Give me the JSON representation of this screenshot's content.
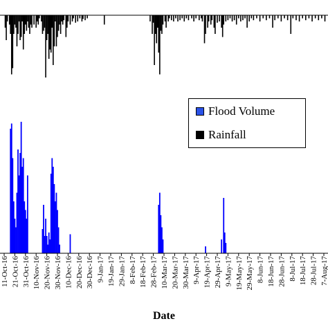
{
  "chart_data": {
    "type": "bar",
    "xlabel": "Date",
    "ylabel": "",
    "legend": {
      "placement": "top-right",
      "entries": [
        {
          "name": "Flood Volume",
          "color": "#0000ff"
        },
        {
          "name": "Rainfall",
          "color": "#000000"
        }
      ]
    },
    "x_tick_labels": [
      "11-Oct-16",
      "21-Oct-16",
      "31-Oct-16",
      "10-Nov-16",
      "20-Nov-16",
      "30-Nov-16",
      "10-Dec-16",
      "20-Dec-16",
      "30-Dec-16",
      "9-Jan-17",
      "19-Jan-17",
      "29-Jan-17",
      "8-Feb-17",
      "18-Feb-17",
      "28-Feb-17",
      "10-Mar-17",
      "20-Mar-17",
      "30-Mar-17",
      "9-Apr-17",
      "19-Apr-17",
      "29-Apr-17",
      "9-May-17",
      "19-May-17",
      "29-May-17",
      "8-Jun-17",
      "18-Jun-17",
      "28-Jun-17",
      "8-Jul-17",
      "18-Jul-17",
      "28-Jul-17",
      "7-Aug-17"
    ],
    "x_start_date": "2016-10-11",
    "series": [
      {
        "name": "Flood Volume",
        "color": "#0000ff",
        "ylim": [
          0,
          1
        ],
        "points": [
          [
            "2016-10-17",
            0.72
          ],
          [
            "2016-10-18",
            0.75
          ],
          [
            "2016-10-19",
            0.55
          ],
          [
            "2016-10-20",
            0.3
          ],
          [
            "2016-10-21",
            0.2
          ],
          [
            "2016-10-22",
            0.15
          ],
          [
            "2016-10-23",
            0.35
          ],
          [
            "2016-10-24",
            0.6
          ],
          [
            "2016-10-25",
            0.45
          ],
          [
            "2016-10-26",
            0.58
          ],
          [
            "2016-10-27",
            0.76
          ],
          [
            "2016-10-28",
            0.5
          ],
          [
            "2016-10-29",
            0.55
          ],
          [
            "2016-10-30",
            0.3
          ],
          [
            "2016-10-31",
            0.25
          ],
          [
            "2016-11-01",
            0.2
          ],
          [
            "2016-11-02",
            0.45
          ],
          [
            "2016-11-16",
            0.14
          ],
          [
            "2016-11-17",
            0.28
          ],
          [
            "2016-11-18",
            0.1
          ],
          [
            "2016-11-19",
            0.2
          ],
          [
            "2016-11-20",
            0.1
          ],
          [
            "2016-11-21",
            0.05
          ],
          [
            "2016-11-22",
            0.12
          ],
          [
            "2016-11-23",
            0.08
          ],
          [
            "2016-11-24",
            0.46
          ],
          [
            "2016-11-25",
            0.55
          ],
          [
            "2016-11-26",
            0.5
          ],
          [
            "2016-11-27",
            0.4
          ],
          [
            "2016-11-28",
            0.3
          ],
          [
            "2016-11-29",
            0.35
          ],
          [
            "2016-11-30",
            0.25
          ],
          [
            "2016-12-01",
            0.15
          ],
          [
            "2016-12-02",
            0.05
          ],
          [
            "2016-12-12",
            0.11
          ],
          [
            "2017-03-05",
            0.28
          ],
          [
            "2017-03-06",
            0.35
          ],
          [
            "2017-03-07",
            0.22
          ],
          [
            "2017-03-08",
            0.15
          ],
          [
            "2017-03-09",
            0.08
          ],
          [
            "2017-04-18",
            0.04
          ],
          [
            "2017-05-03",
            0.08
          ],
          [
            "2017-05-05",
            0.32
          ],
          [
            "2017-05-06",
            0.12
          ],
          [
            "2017-05-07",
            0.06
          ]
        ]
      },
      {
        "name": "Rainfall",
        "color": "#000000",
        "ylim": [
          0,
          1
        ],
        "points": [
          [
            "2016-10-12",
            0.2
          ],
          [
            "2016-10-13",
            0.4
          ],
          [
            "2016-10-14",
            0.1
          ],
          [
            "2016-10-16",
            0.15
          ],
          [
            "2016-10-17",
            0.3
          ],
          [
            "2016-10-18",
            0.95
          ],
          [
            "2016-10-19",
            0.85
          ],
          [
            "2016-10-20",
            0.3
          ],
          [
            "2016-10-21",
            0.15
          ],
          [
            "2016-10-22",
            0.2
          ],
          [
            "2016-10-23",
            0.5
          ],
          [
            "2016-10-24",
            0.3
          ],
          [
            "2016-10-25",
            0.1
          ],
          [
            "2016-10-26",
            0.4
          ],
          [
            "2016-10-27",
            0.35
          ],
          [
            "2016-10-28",
            0.1
          ],
          [
            "2016-10-29",
            0.55
          ],
          [
            "2016-10-30",
            0.3
          ],
          [
            "2016-10-31",
            0.15
          ],
          [
            "2016-11-01",
            0.25
          ],
          [
            "2016-11-02",
            0.1
          ],
          [
            "2016-11-03",
            0.2
          ],
          [
            "2016-11-04",
            0.3
          ],
          [
            "2016-11-05",
            0.15
          ],
          [
            "2016-11-06",
            0.2
          ],
          [
            "2016-11-08",
            0.15
          ],
          [
            "2016-11-10",
            0.2
          ],
          [
            "2016-11-11",
            0.1
          ],
          [
            "2016-11-12",
            0.15
          ],
          [
            "2016-11-13",
            0.05
          ],
          [
            "2016-11-15",
            0.1
          ],
          [
            "2016-11-16",
            0.3
          ],
          [
            "2016-11-17",
            0.25
          ],
          [
            "2016-11-18",
            0.2
          ],
          [
            "2016-11-19",
            1.0
          ],
          [
            "2016-11-20",
            0.4
          ],
          [
            "2016-11-21",
            0.3
          ],
          [
            "2016-11-22",
            0.7
          ],
          [
            "2016-11-23",
            0.55
          ],
          [
            "2016-11-24",
            0.6
          ],
          [
            "2016-11-25",
            0.2
          ],
          [
            "2016-11-26",
            0.8
          ],
          [
            "2016-11-27",
            0.5
          ],
          [
            "2016-11-28",
            0.1
          ],
          [
            "2016-11-29",
            0.5
          ],
          [
            "2016-11-30",
            0.35
          ],
          [
            "2016-12-01",
            0.25
          ],
          [
            "2016-12-02",
            0.15
          ],
          [
            "2016-12-03",
            0.3
          ],
          [
            "2016-12-04",
            0.1
          ],
          [
            "2016-12-05",
            0.15
          ],
          [
            "2016-12-06",
            0.08
          ],
          [
            "2016-12-08",
            0.35
          ],
          [
            "2016-12-09",
            0.2
          ],
          [
            "2016-12-10",
            0.1
          ],
          [
            "2016-12-12",
            0.15
          ],
          [
            "2016-12-14",
            0.1
          ],
          [
            "2016-12-15",
            0.05
          ],
          [
            "2016-12-17",
            0.12
          ],
          [
            "2016-12-19",
            0.1
          ],
          [
            "2016-12-21",
            0.05
          ],
          [
            "2016-12-23",
            0.1
          ],
          [
            "2016-12-24",
            0.06
          ],
          [
            "2016-12-26",
            0.08
          ],
          [
            "2016-12-28",
            0.05
          ],
          [
            "2017-01-13",
            0.15
          ],
          [
            "2017-02-25",
            0.1
          ],
          [
            "2017-02-27",
            0.3
          ],
          [
            "2017-02-28",
            0.12
          ],
          [
            "2017-03-01",
            0.8
          ],
          [
            "2017-03-02",
            0.3
          ],
          [
            "2017-03-03",
            0.45
          ],
          [
            "2017-03-04",
            0.2
          ],
          [
            "2017-03-05",
            0.6
          ],
          [
            "2017-03-06",
            0.95
          ],
          [
            "2017-03-07",
            0.25
          ],
          [
            "2017-03-08",
            0.3
          ],
          [
            "2017-03-09",
            0.15
          ],
          [
            "2017-03-11",
            0.1
          ],
          [
            "2017-03-12",
            0.2
          ],
          [
            "2017-03-14",
            0.1
          ],
          [
            "2017-03-15",
            0.05
          ],
          [
            "2017-03-17",
            0.08
          ],
          [
            "2017-03-19",
            0.1
          ],
          [
            "2017-03-21",
            0.05
          ],
          [
            "2017-03-23",
            0.1
          ],
          [
            "2017-03-25",
            0.08
          ],
          [
            "2017-03-27",
            0.05
          ],
          [
            "2017-03-29",
            0.1
          ],
          [
            "2017-03-31",
            0.05
          ],
          [
            "2017-04-02",
            0.08
          ],
          [
            "2017-04-05",
            0.05
          ],
          [
            "2017-04-07",
            0.1
          ],
          [
            "2017-04-09",
            0.05
          ],
          [
            "2017-04-12",
            0.08
          ],
          [
            "2017-04-14",
            0.05
          ],
          [
            "2017-04-15",
            0.1
          ],
          [
            "2017-04-17",
            0.45
          ],
          [
            "2017-04-18",
            0.3
          ],
          [
            "2017-04-20",
            0.2
          ],
          [
            "2017-04-21",
            0.1
          ],
          [
            "2017-04-23",
            0.15
          ],
          [
            "2017-04-24",
            0.08
          ],
          [
            "2017-04-26",
            0.2
          ],
          [
            "2017-04-27",
            0.3
          ],
          [
            "2017-04-29",
            0.12
          ],
          [
            "2017-05-01",
            0.1
          ],
          [
            "2017-05-03",
            0.2
          ],
          [
            "2017-05-04",
            0.35
          ],
          [
            "2017-05-05",
            0.15
          ],
          [
            "2017-05-07",
            0.1
          ],
          [
            "2017-05-09",
            0.08
          ],
          [
            "2017-05-11",
            0.05
          ],
          [
            "2017-05-13",
            0.1
          ],
          [
            "2017-05-15",
            0.08
          ],
          [
            "2017-05-17",
            0.15
          ],
          [
            "2017-05-19",
            0.05
          ],
          [
            "2017-05-21",
            0.1
          ],
          [
            "2017-05-23",
            0.08
          ],
          [
            "2017-05-25",
            0.05
          ],
          [
            "2017-05-27",
            0.2
          ],
          [
            "2017-05-29",
            0.1
          ],
          [
            "2017-05-31",
            0.05
          ],
          [
            "2017-06-02",
            0.08
          ],
          [
            "2017-06-05",
            0.05
          ],
          [
            "2017-06-08",
            0.1
          ],
          [
            "2017-06-11",
            0.05
          ],
          [
            "2017-06-14",
            0.08
          ],
          [
            "2017-06-17",
            0.05
          ],
          [
            "2017-06-20",
            0.2
          ],
          [
            "2017-06-22",
            0.08
          ],
          [
            "2017-06-25",
            0.05
          ],
          [
            "2017-06-28",
            0.1
          ],
          [
            "2017-07-01",
            0.05
          ],
          [
            "2017-07-04",
            0.08
          ],
          [
            "2017-07-07",
            0.3
          ],
          [
            "2017-07-09",
            0.05
          ],
          [
            "2017-07-12",
            0.08
          ],
          [
            "2017-07-15",
            0.1
          ],
          [
            "2017-07-18",
            0.05
          ],
          [
            "2017-07-21",
            0.08
          ],
          [
            "2017-07-24",
            0.05
          ],
          [
            "2017-07-27",
            0.1
          ],
          [
            "2017-07-30",
            0.05
          ],
          [
            "2017-08-02",
            0.08
          ],
          [
            "2017-08-05",
            0.05
          ],
          [
            "2017-08-08",
            0.1
          ]
        ]
      }
    ]
  }
}
